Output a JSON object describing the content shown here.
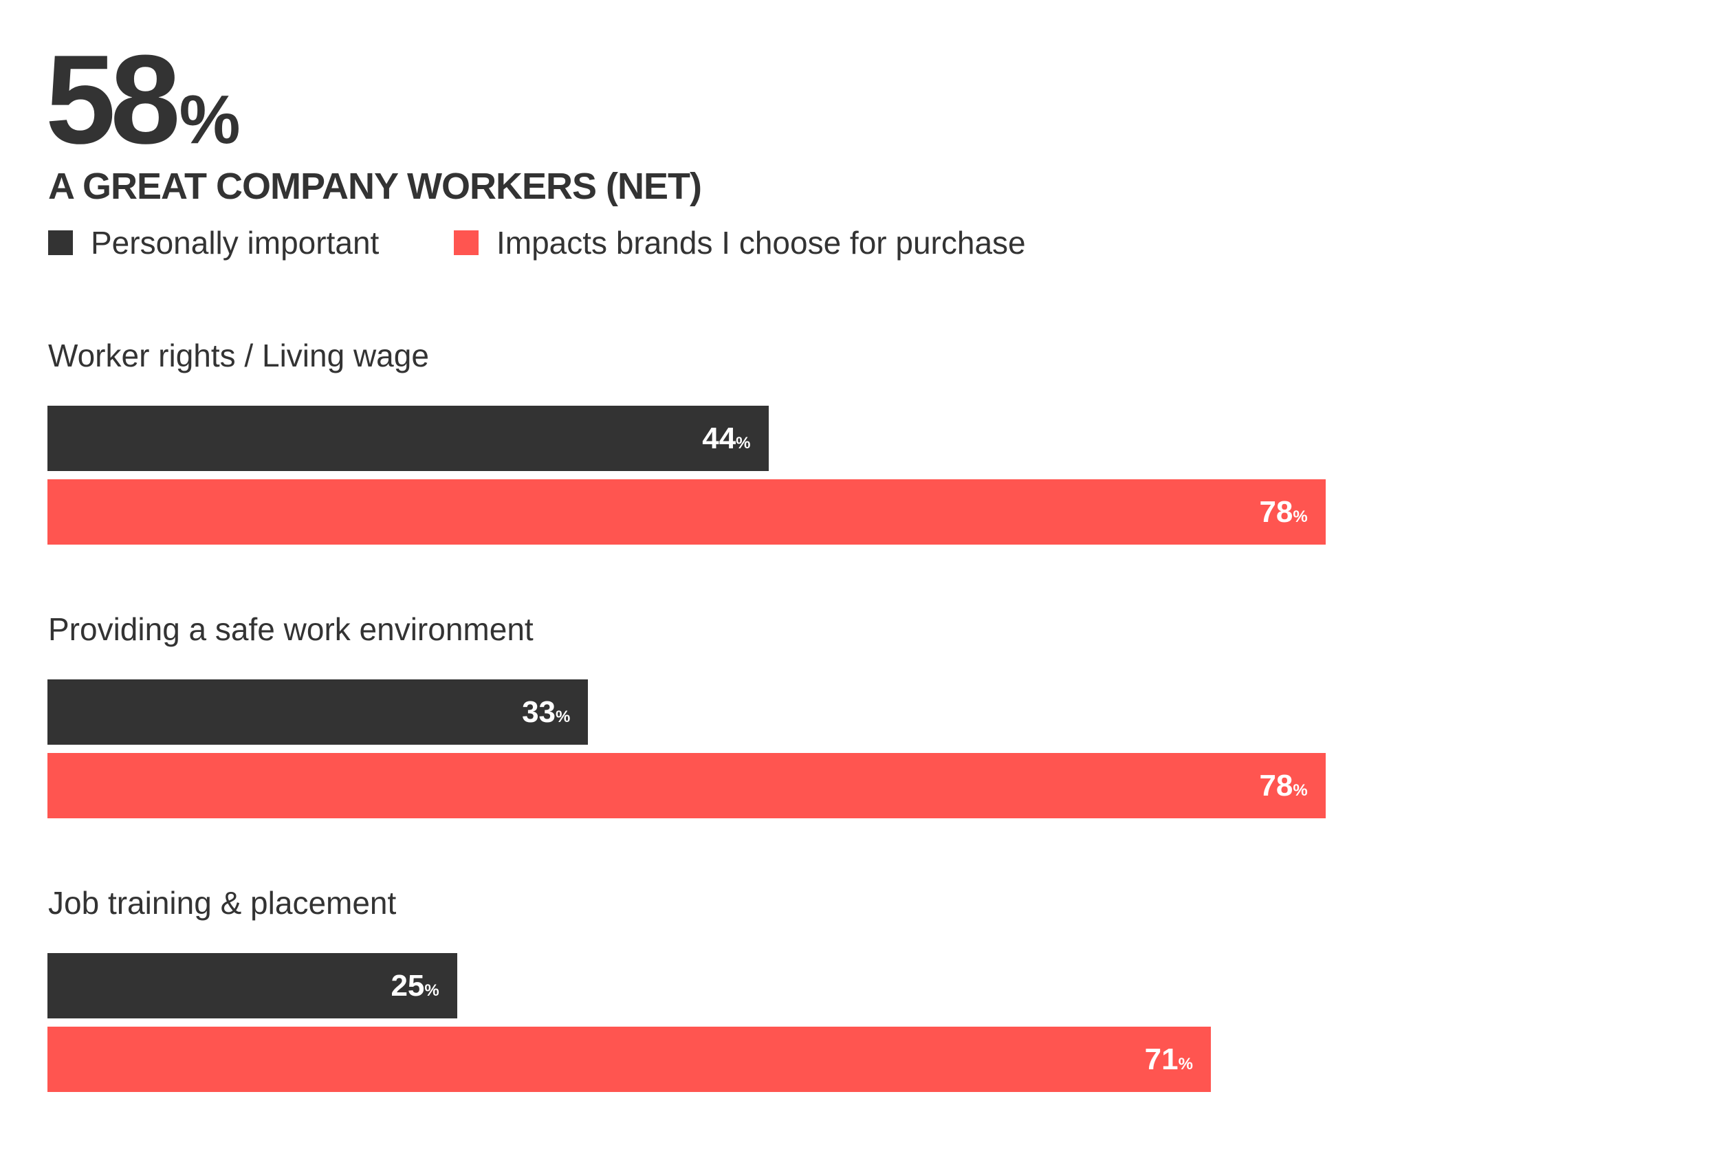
{
  "headline": {
    "value": "58",
    "unit": "%"
  },
  "chart_data": {
    "type": "bar",
    "orientation": "horizontal",
    "title": "A GREAT COMPANY WORKERS (NET)",
    "categories": [
      "Worker rights / Living wage",
      "Providing a safe work environment",
      "Job training & placement"
    ],
    "series": [
      {
        "name": "Personally important",
        "color": "#333333",
        "values": [
          44,
          33,
          25
        ]
      },
      {
        "name": "Impacts brands I choose for purchase",
        "color": "#ff5550",
        "values": [
          78,
          78,
          71
        ]
      }
    ],
    "unit": "%",
    "xlim": [
      0,
      100
    ],
    "grid": false,
    "legend": "top-left"
  }
}
